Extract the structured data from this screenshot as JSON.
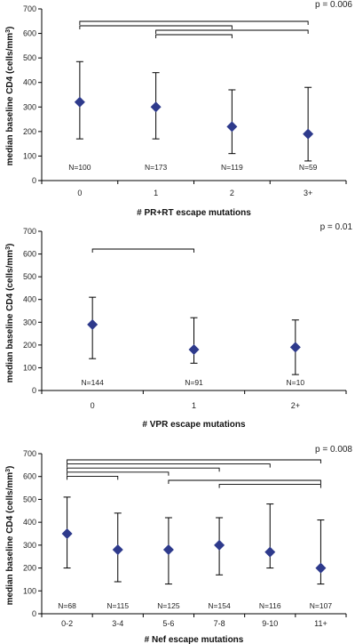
{
  "chart_data": [
    {
      "type": "scatter",
      "categories": [
        "0",
        "1",
        "2",
        "3+"
      ],
      "values": [
        320,
        300,
        220,
        190
      ],
      "errors": [
        [
          170,
          485
        ],
        [
          170,
          440
        ],
        [
          110,
          370
        ],
        [
          80,
          380
        ]
      ],
      "n_labels": [
        "N=100",
        "N=173",
        "N=119",
        "N=59"
      ],
      "xlabel": "# PR+RT escape mutations",
      "ylabel_main": "median baseline CD4 (cells/mm",
      "ylabel_sup": "3",
      "ylabel_end": ")",
      "ylim": [
        0,
        700
      ],
      "yticks": [
        "0",
        "100",
        "200",
        "300",
        "400",
        "500",
        "600",
        "700"
      ],
      "pvalue": "p = 0.006",
      "brackets": [
        [
          0,
          3
        ],
        [
          0,
          2
        ],
        [
          1,
          3
        ],
        [
          1,
          2
        ]
      ],
      "marker_color": "#2e3a8c",
      "grid": false
    },
    {
      "type": "scatter",
      "categories": [
        "0",
        "1",
        "2+"
      ],
      "values": [
        290,
        180,
        190
      ],
      "errors": [
        [
          140,
          410
        ],
        [
          120,
          320
        ],
        [
          70,
          310
        ]
      ],
      "n_labels": [
        "N=144",
        "N=91",
        "N=10"
      ],
      "xlabel": "# VPR escape mutations",
      "ylabel_main": "median baseline CD4 (cells/mm",
      "ylabel_sup": "3",
      "ylabel_end": ")",
      "ylim": [
        0,
        700
      ],
      "yticks": [
        "0",
        "100",
        "200",
        "300",
        "400",
        "500",
        "600",
        "700"
      ],
      "pvalue": "p = 0.01",
      "brackets": [
        [
          0,
          1
        ]
      ],
      "marker_color": "#2e3a8c",
      "grid": false
    },
    {
      "type": "scatter",
      "categories": [
        "0-2",
        "3-4",
        "5-6",
        "7-8",
        "9-10",
        "11+"
      ],
      "values": [
        350,
        280,
        280,
        300,
        270,
        200
      ],
      "errors": [
        [
          200,
          510
        ],
        [
          140,
          440
        ],
        [
          130,
          420
        ],
        [
          170,
          420
        ],
        [
          200,
          480
        ],
        [
          130,
          410
        ]
      ],
      "n_labels": [
        "N=68",
        "N=115",
        "N=125",
        "N=154",
        "N=116",
        "N=107"
      ],
      "xlabel": "# Nef escape mutations",
      "ylabel_main": "median baseline CD4 (cells/mm",
      "ylabel_sup": "3",
      "ylabel_end": ")",
      "ylim": [
        0,
        700
      ],
      "yticks": [
        "0",
        "100",
        "200",
        "300",
        "400",
        "500",
        "600",
        "700"
      ],
      "pvalue": "p = 0.008",
      "brackets": [
        [
          0,
          5
        ],
        [
          0,
          4
        ],
        [
          0,
          3
        ],
        [
          0,
          2
        ],
        [
          0,
          1
        ],
        [
          2,
          5
        ],
        [
          3,
          5
        ]
      ],
      "marker_color": "#2e3a8c",
      "grid": false
    }
  ]
}
